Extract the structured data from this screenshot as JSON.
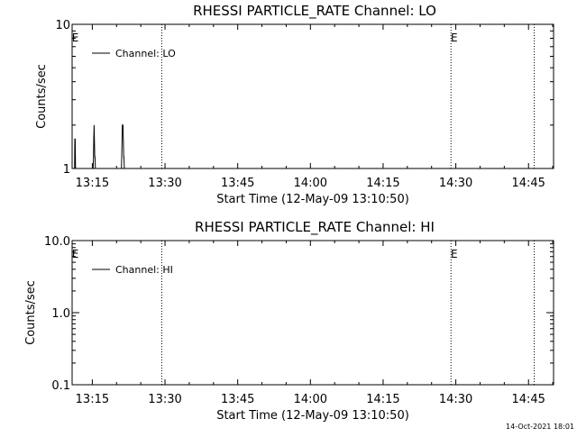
{
  "footer": {
    "timestamp": "14-Oct-2021 18:01"
  },
  "chart_data": [
    {
      "type": "line",
      "title": "RHESSI PARTICLE_RATE Channel: LO",
      "xlabel": "Start Time (12-May-09 13:10:50)",
      "ylabel": "Counts/sec",
      "y_scale": "log",
      "ylim": [
        1,
        10
      ],
      "y_ticks": [
        "1",
        "10"
      ],
      "xlim": [
        "13:10:50",
        "14:50:10"
      ],
      "x_ticks": [
        "13:15",
        "13:30",
        "13:45",
        "14:00",
        "14:15",
        "14:30",
        "14:45"
      ],
      "grid": false,
      "legend": {
        "position": "top-left",
        "entries": [
          "Channel: LO"
        ]
      },
      "vertical_lines": [
        "13:29:20",
        "14:29:00",
        "14:46:10"
      ],
      "markers": [
        {
          "label": "E",
          "x": "13:11:10"
        },
        {
          "label": "E",
          "x": "14:29:20"
        }
      ],
      "series": [
        {
          "name": "Channel: LO",
          "x": [
            "13:11:10",
            "13:11:20",
            "13:11:24",
            "13:11:28",
            "13:11:32",
            "13:11:36",
            "13:11:40",
            "13:15:10",
            "13:15:14",
            "13:15:18",
            "13:15:22",
            "13:15:26",
            "13:15:30",
            "13:15:34",
            "13:15:38",
            "13:15:42",
            "13:15:46",
            "13:21:00",
            "13:21:04",
            "13:21:08",
            "13:21:12",
            "13:21:16",
            "13:21:20",
            "13:21:24",
            "13:21:28",
            "13:21:32",
            "13:21:36",
            "13:21:40"
          ],
          "y": [
            1,
            1,
            1.6,
            1.6,
            1,
            1,
            1,
            1,
            1.2,
            1.6,
            2,
            1.6,
            1.2,
            1.2,
            1,
            1,
            1,
            1,
            1.2,
            1.6,
            2,
            2,
            2,
            1.6,
            1.2,
            1.2,
            1,
            1
          ]
        }
      ]
    },
    {
      "type": "line",
      "title": "RHESSI PARTICLE_RATE Channel: HI",
      "xlabel": "Start Time (12-May-09 13:10:50)",
      "ylabel": "Counts/sec",
      "y_scale": "log",
      "ylim": [
        0.1,
        10
      ],
      "y_ticks": [
        "0.1",
        "1.0",
        "10.0"
      ],
      "xlim": [
        "13:10:50",
        "14:50:10"
      ],
      "x_ticks": [
        "13:15",
        "13:30",
        "13:45",
        "14:00",
        "14:15",
        "14:30",
        "14:45"
      ],
      "grid": false,
      "legend": {
        "position": "top-left",
        "entries": [
          "Channel: HI"
        ]
      },
      "vertical_lines": [
        "13:29:20",
        "14:29:00",
        "14:46:10"
      ],
      "markers": [
        {
          "label": "E",
          "x": "13:11:10"
        },
        {
          "label": "E",
          "x": "14:29:20"
        }
      ],
      "series": [
        {
          "name": "Channel: HI",
          "x": [],
          "y": []
        }
      ]
    }
  ]
}
